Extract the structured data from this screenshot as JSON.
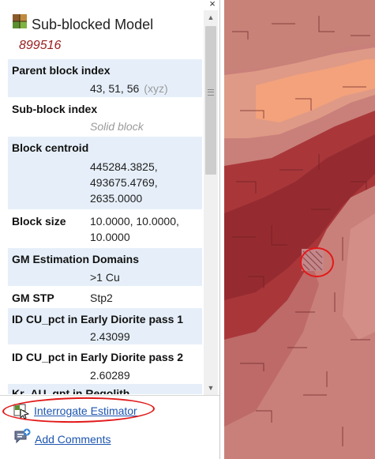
{
  "panel": {
    "close_glyph": "×",
    "title": "Sub-blocked Model",
    "model_id": "899516",
    "icons": {
      "title": "grid-model-icon",
      "close": "close-icon"
    }
  },
  "properties": [
    {
      "label": "Parent block index",
      "value": "43, 51, 56",
      "suffix": "(xyz)"
    },
    {
      "label": "Sub-block index",
      "value": "Solid block"
    },
    {
      "label": "Block centroid",
      "lines": [
        "445284.3825,",
        "493675.4769,",
        "2635.0000"
      ]
    },
    {
      "label": "Block size",
      "lines": [
        "10.0000, 10.0000,",
        "10.0000"
      ]
    },
    {
      "label": "GM Estimation Domains",
      "value": ">1 Cu"
    },
    {
      "label": "GM STP",
      "value": "Stp2"
    },
    {
      "label": "ID CU_pct in Early Diorite pass 1",
      "value": "2.43099"
    },
    {
      "label": "ID CU_pct in Early Diorite pass 2",
      "value": "2.60289"
    },
    {
      "label": "Kr_AU_gpt in Regolith",
      "value": ""
    }
  ],
  "actions": {
    "interrogate": "Interrogate Estimator",
    "comments": "Add Comments"
  },
  "scrollbar": {
    "up": "▲",
    "down": "▼"
  },
  "colors": {
    "map_base": "#c9807a",
    "map_light": "#de9a86",
    "map_orange": "#f3a27c",
    "map_dark": "#a9373a",
    "map_darker": "#952b30",
    "highlight": "#e21818",
    "row_shade": "#e6eff9"
  }
}
